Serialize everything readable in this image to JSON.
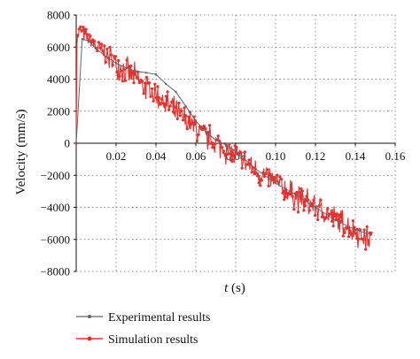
{
  "chart_data": {
    "type": "line",
    "xlabel_var": "t",
    "xlabel_unit": " (s)",
    "ylabel": "Velocity (mm/s)",
    "xlim": [
      0,
      0.16
    ],
    "ylim": [
      -8000,
      8000
    ],
    "xticks": [
      0.02,
      0.04,
      0.06,
      0.08,
      0.1,
      0.12,
      0.14,
      0.16
    ],
    "xtick_labels": [
      "0.02",
      "0.04",
      "0.06",
      "0.08",
      "0.10",
      "0.12",
      "0.14",
      "0.16"
    ],
    "yticks": [
      -8000,
      -6000,
      -4000,
      -2000,
      0,
      2000,
      4000,
      6000,
      8000
    ],
    "ytick_labels": [
      "−8000",
      "−6000",
      "−4000",
      "−2000",
      "0",
      "2000",
      "4000",
      "6000",
      "8000"
    ],
    "grid": true,
    "legend_position": "bottom",
    "series": [
      {
        "name": "Experimental results",
        "color": "#5f6670",
        "marker": "small-dot",
        "x": [
          0,
          0.003,
          0.006,
          0.01,
          0.015,
          0.02,
          0.025,
          0.03,
          0.035,
          0.04,
          0.045,
          0.05,
          0.055,
          0.06,
          0.065,
          0.07,
          0.075,
          0.08,
          0.09,
          0.1,
          0.11,
          0.12,
          0.13,
          0.14,
          0.148
        ],
        "values": [
          0,
          6500,
          6400,
          5900,
          5400,
          5000,
          4700,
          4500,
          4400,
          4300,
          3700,
          3200,
          2300,
          1400,
          700,
          200,
          -100,
          -500,
          -1600,
          -2500,
          -3200,
          -4000,
          -4800,
          -5400,
          -5700
        ]
      },
      {
        "name": "Simulation results",
        "color": "#e8312c",
        "marker": "dot",
        "x": [
          0,
          0.001,
          0.002,
          0.003,
          0.004,
          0.005,
          0.006,
          0.008,
          0.01,
          0.015,
          0.02,
          0.03,
          0.04,
          0.05,
          0.06,
          0.07,
          0.08,
          0.09,
          0.1,
          0.11,
          0.12,
          0.13,
          0.14,
          0.148
        ],
        "values": [
          6000,
          6800,
          7100,
          6900,
          6700,
          6600,
          6500,
          6300,
          6000,
          5500,
          5000,
          4000,
          3000,
          1900,
          900,
          0,
          -800,
          -1700,
          -2500,
          -3300,
          -4000,
          -4700,
          -5500,
          -6100
        ],
        "noise_amplitude": 700
      }
    ]
  }
}
